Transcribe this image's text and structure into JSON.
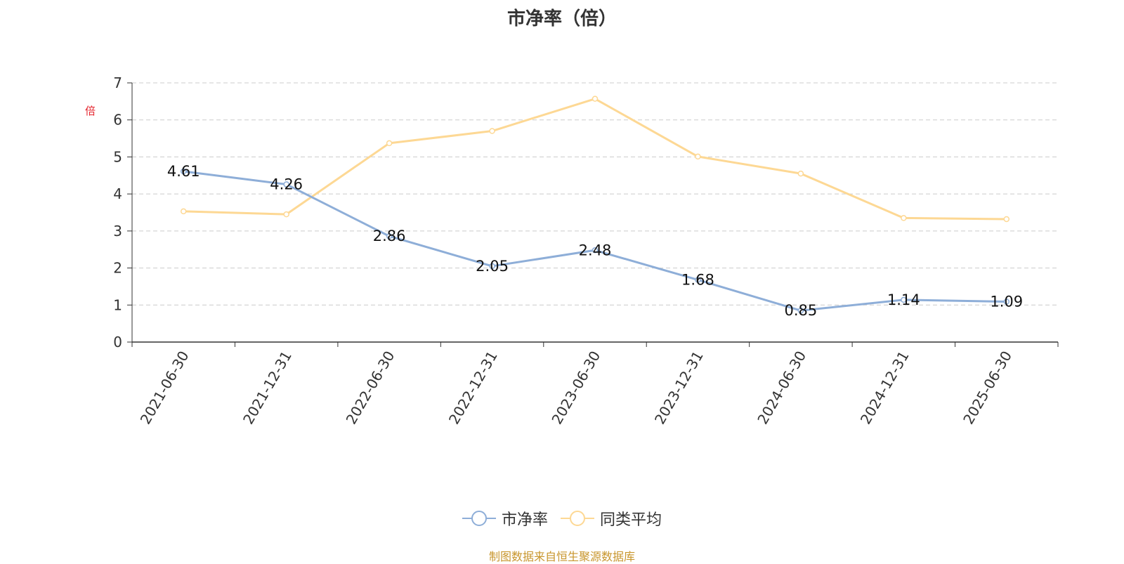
{
  "chart_data": {
    "type": "line",
    "title": "市净率（倍）",
    "ylabel": "倍",
    "xlabel": "",
    "ylim": [
      0,
      7
    ],
    "yticks": [
      0,
      1,
      2,
      3,
      4,
      5,
      6,
      7
    ],
    "grid": true,
    "legend_position": "bottom-center",
    "categories": [
      "2021-06-30",
      "2021-12-31",
      "2022-06-30",
      "2022-12-31",
      "2023-06-30",
      "2023-12-31",
      "2024-06-30",
      "2024-12-31",
      "2025-06-30"
    ],
    "series": [
      {
        "name": "市净率",
        "color": "#8eaed8",
        "values": [
          4.61,
          4.26,
          2.86,
          2.05,
          2.48,
          1.68,
          0.85,
          1.14,
          1.09
        ],
        "show_labels": true
      },
      {
        "name": "同类平均",
        "color": "#fdd894",
        "values": [
          3.53,
          3.45,
          5.37,
          5.7,
          6.57,
          5.01,
          4.55,
          3.35,
          3.32
        ],
        "show_labels": false
      }
    ]
  },
  "source_note": "制图数据来自恒生聚源数据库"
}
